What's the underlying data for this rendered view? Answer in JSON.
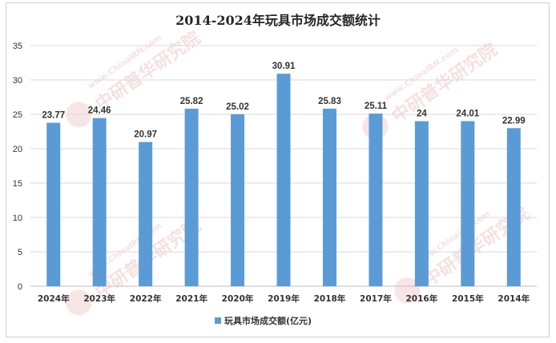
{
  "chart_data": {
    "type": "bar",
    "title": "2014-2024年玩具市场成交额统计",
    "categories": [
      "2024年",
      "2023年",
      "2022年",
      "2021年",
      "2020年",
      "2019年",
      "2018年",
      "2017年",
      "2016年",
      "2015年",
      "2014年"
    ],
    "series": [
      {
        "name": "玩具市场成交额(亿元)",
        "values": [
          23.77,
          24.46,
          20.97,
          25.82,
          25.02,
          30.91,
          25.83,
          25.11,
          24,
          24.01,
          22.99
        ],
        "labels": [
          "23.77",
          "24.46",
          "20.97",
          "25.82",
          "25.02",
          "30.91",
          "25.83",
          "25.11",
          "24",
          "24.01",
          "22.99"
        ]
      }
    ],
    "ylim": [
      0,
      35
    ],
    "yticks": [
      "0",
      "5",
      "10",
      "15",
      "20",
      "25",
      "30",
      "35"
    ],
    "xlabel": "",
    "ylabel": "",
    "grid": true,
    "legend": "bottom",
    "bar_color": "#5b9bd5"
  },
  "watermark": {
    "url": "www.ChinaIRN.com",
    "name": "中研普华研究院",
    "logo": "CIRN"
  }
}
